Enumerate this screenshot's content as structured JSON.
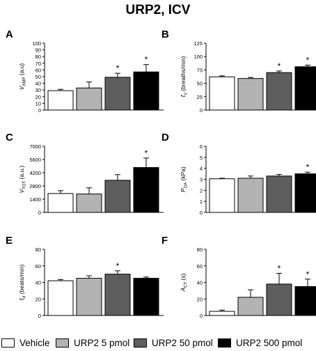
{
  "figure_title": "URP2, ICV",
  "legend": [
    {
      "label": "Vehicle",
      "color": "#ffffff"
    },
    {
      "label": "URP2 5 pmol",
      "color": "#b3b3b3"
    },
    {
      "label": "URP2 50 pmol",
      "color": "#5e5e5e"
    },
    {
      "label": "URP2 500 pmol",
      "color": "#000000"
    }
  ],
  "chart_data": [
    {
      "panel": "A",
      "type": "bar",
      "ylabel_main": "V",
      "ylabel_sub": "AMP",
      "ylabel_rest": " (a.u)",
      "ylim": [
        0,
        100
      ],
      "yticks": [
        0,
        10,
        20,
        30,
        40,
        50,
        60,
        70,
        80,
        90,
        100
      ],
      "series": [
        {
          "name": "Vehicle",
          "value": 29,
          "error": 2,
          "sig": false
        },
        {
          "name": "URP2 5 pmol",
          "value": 33,
          "error": 9,
          "sig": false
        },
        {
          "name": "URP2 50 pmol",
          "value": 49,
          "error": 6,
          "sig": true
        },
        {
          "name": "URP2 500 pmol",
          "value": 57,
          "error": 11,
          "sig": true
        }
      ]
    },
    {
      "panel": "B",
      "type": "bar",
      "ylabel_main": "f",
      "ylabel_sub": "V",
      "ylabel_rest": " (breaths/min)",
      "ylim": [
        0,
        125
      ],
      "yticks": [
        0,
        25,
        50,
        75,
        100,
        125
      ],
      "series": [
        {
          "name": "Vehicle",
          "value": 62,
          "error": 2,
          "sig": false
        },
        {
          "name": "URP2 5 pmol",
          "value": 59,
          "error": 2,
          "sig": false
        },
        {
          "name": "URP2 50 pmol",
          "value": 70,
          "error": 3,
          "sig": true
        },
        {
          "name": "URP2 500 pmol",
          "value": 81,
          "error": 3,
          "sig": true
        }
      ]
    },
    {
      "panel": "C",
      "type": "bar",
      "ylabel_main": "V",
      "ylabel_sub": "TOT",
      "ylabel_rest": " (a.u.)",
      "ylim": [
        0,
        7000
      ],
      "yticks": [
        0,
        1400,
        2800,
        4200,
        5600,
        7000
      ],
      "series": [
        {
          "name": "Vehicle",
          "value": 2000,
          "error": 300,
          "sig": false
        },
        {
          "name": "URP2 5 pmol",
          "value": 1950,
          "error": 650,
          "sig": false
        },
        {
          "name": "URP2 50 pmol",
          "value": 3400,
          "error": 600,
          "sig": false
        },
        {
          "name": "URP2 500 pmol",
          "value": 4750,
          "error": 1000,
          "sig": true
        }
      ]
    },
    {
      "panel": "D",
      "type": "bar",
      "ylabel_main": "P",
      "ylabel_sub": "DA",
      "ylabel_rest": " (kPa)",
      "ylim": [
        0,
        6
      ],
      "yticks": [
        0,
        1,
        2,
        3,
        4,
        5,
        6
      ],
      "series": [
        {
          "name": "Vehicle",
          "value": 3.05,
          "error": 0.05,
          "sig": false
        },
        {
          "name": "URP2 5 pmol",
          "value": 3.1,
          "error": 0.2,
          "sig": false
        },
        {
          "name": "URP2 50 pmol",
          "value": 3.3,
          "error": 0.15,
          "sig": false
        },
        {
          "name": "URP2 500 pmol",
          "value": 3.5,
          "error": 0.15,
          "sig": true
        }
      ]
    },
    {
      "panel": "E",
      "type": "bar",
      "ylabel_main": "f",
      "ylabel_sub": "H",
      "ylabel_rest": " (beats/min)",
      "ylim": [
        0,
        80
      ],
      "yticks": [
        0,
        20,
        40,
        60,
        80
      ],
      "series": [
        {
          "name": "Vehicle",
          "value": 42,
          "error": 1.5,
          "sig": false
        },
        {
          "name": "URP2 5 pmol",
          "value": 45,
          "error": 3,
          "sig": false
        },
        {
          "name": "URP2 50 pmol",
          "value": 50,
          "error": 4,
          "sig": true
        },
        {
          "name": "URP2 500 pmol",
          "value": 45,
          "error": 1.5,
          "sig": false
        }
      ]
    },
    {
      "panel": "F",
      "type": "bar",
      "ylabel_main": "A",
      "ylabel_sub": "CT",
      "ylabel_rest": " (s)",
      "ylim": [
        0,
        80
      ],
      "yticks": [
        0,
        20,
        40,
        60,
        80
      ],
      "series": [
        {
          "name": "Vehicle",
          "value": 5,
          "error": 1.5,
          "sig": false
        },
        {
          "name": "URP2 5 pmol",
          "value": 22,
          "error": 9,
          "sig": false
        },
        {
          "name": "URP2 50 pmol",
          "value": 38,
          "error": 13,
          "sig": true
        },
        {
          "name": "URP2 500 pmol",
          "value": 35,
          "error": 9,
          "sig": true
        }
      ]
    }
  ]
}
